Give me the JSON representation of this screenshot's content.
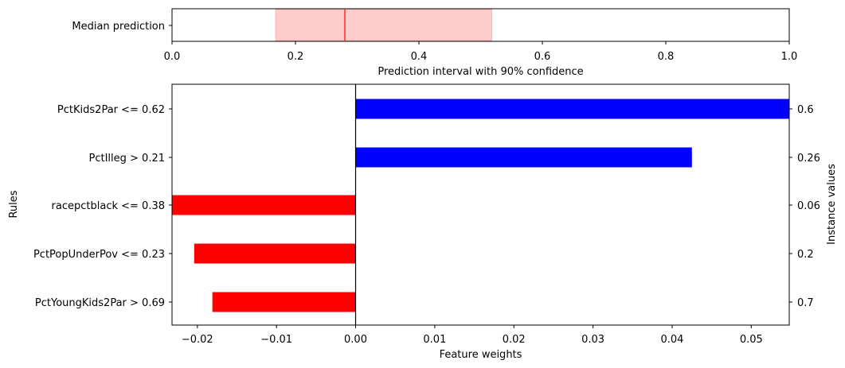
{
  "chart_data": [
    {
      "type": "interval",
      "category": "Median prediction",
      "interval": [
        0.168,
        0.518
      ],
      "median": 0.28,
      "xlim": [
        0.0,
        1.0
      ],
      "xticks": [
        "0.0",
        "0.2",
        "0.4",
        "0.6",
        "0.8",
        "1.0"
      ],
      "xtick_values": [
        0.0,
        0.2,
        0.4,
        0.6,
        0.8,
        1.0
      ],
      "xlabel": "Prediction interval with 90% confidence",
      "colors": {
        "interval_fill": "#ffcccc",
        "interval_edge": "#ffb3b3",
        "median_line": "#ff0000"
      }
    },
    {
      "type": "bar",
      "orientation": "horizontal",
      "categories": [
        "PctKids2Par <= 0.62",
        "PctIlleg > 0.21",
        "racepctblack <= 0.38",
        "PctPopUnderPov <= 0.23",
        "PctYoungKids2Par > 0.69"
      ],
      "values": [
        0.0548,
        0.0425,
        -0.0232,
        -0.0204,
        -0.0181
      ],
      "instance_values": [
        "0.6",
        "0.26",
        "0.06",
        "0.2",
        "0.7"
      ],
      "xlim": [
        -0.0232,
        0.0548
      ],
      "xticks": [
        "−0.02",
        "−0.01",
        "0.00",
        "0.01",
        "0.02",
        "0.03",
        "0.04",
        "0.05"
      ],
      "xtick_values": [
        -0.02,
        -0.01,
        0.0,
        0.01,
        0.02,
        0.03,
        0.04,
        0.05
      ],
      "xlabel": "Feature weights",
      "ylabel": "Rules",
      "ylabel_right": "Instance values",
      "colors": {
        "positive": "#0000ff",
        "negative": "#ff0000",
        "zero_line": "#000000"
      }
    }
  ]
}
